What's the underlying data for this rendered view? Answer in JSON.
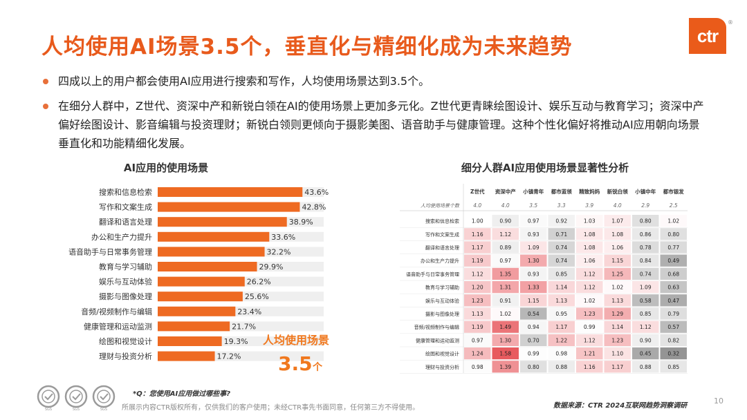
{
  "page": {
    "title": "人均使用AI场景3.5个，垂直化与精细化成为未来趋势",
    "logo_text": "ctr",
    "logo_mark": "®",
    "bullets": [
      "四成以上的用户都会使用AI应用进行搜索和写作，人均使用场景达到3.5个。",
      "在细分人群中，Z世代、资深中产和新锐白领在AI的使用场景上更加多元化。Z世代更青睐绘图设计、娱乐互动与教育学习；资深中产偏好绘图设计、影音编辑与投资理财；新锐白领则更倾向于摄影美图、语音助手与健康管理。这种个性化偏好将推动AI应用朝向场景垂直化和功能精细化发展。"
    ],
    "note": "*Q：您使用AI应用做过哪些事?",
    "copyright": "所展示内容CTR版权所有，仅供我们的客户使用；未经CTR事先书面同意，任何第三方不得使用。",
    "source": "数据来源：CTR 2024互联网趋势洞察调研",
    "page_number": "10",
    "seal_label": "SGS",
    "colors": {
      "accent": "#e85a1c",
      "bar": "#ee6a22",
      "bar_track": "#efefef",
      "callout": "#f0781e"
    }
  },
  "chart_data": [
    {
      "type": "bar",
      "orientation": "horizontal",
      "title": "AI应用的使用场景",
      "categories": [
        "搜索和信息检索",
        "写作和文案生成",
        "翻译和语言处理",
        "办公和生产力提升",
        "语音助手与日常事务管理",
        "教育与学习辅助",
        "娱乐与互动体验",
        "摄影与图像处理",
        "音频/视频制作与编辑",
        "健康管理和运动监测",
        "绘图和视觉设计",
        "理财与投资分析"
      ],
      "values": [
        43.6,
        42.8,
        38.9,
        33.6,
        32.2,
        29.9,
        26.2,
        25.6,
        23.4,
        21.7,
        19.3,
        17.2
      ],
      "value_labels": [
        "43.6%",
        "42.8%",
        "38.9%",
        "33.6%",
        "32.2%",
        "29.9%",
        "26.2%",
        "25.6%",
        "23.4%",
        "21.7%",
        "19.3%",
        "17.2%"
      ],
      "xlim": [
        0,
        50
      ],
      "annotation": {
        "text": "人均使用场景",
        "value": "3.5",
        "unit": "个"
      }
    },
    {
      "type": "heatmap",
      "title": "细分人群AI应用使用场景显著性分析",
      "columns": [
        "Z世代",
        "资深中产",
        "小镇青年",
        "都市蓝领",
        "精致妈妈",
        "新锐白领",
        "小镇中年",
        "都市银发"
      ],
      "summary_row": {
        "label": "人均使用场景个数",
        "values": [
          "4.0",
          "4.0",
          "3.5",
          "3.3",
          "3.9",
          "4.0",
          "2.9",
          "2.5"
        ]
      },
      "rows": [
        "搜索和信息检索",
        "写作和文案生成",
        "翻译和语言处理",
        "办公和生产力提升",
        "语音助手与日常事务管理",
        "教育与学习辅助",
        "娱乐与互动体验",
        "摄影与图像处理",
        "音频/视频制作与编辑",
        "健康管理和运动监测",
        "绘图和视觉设计",
        "理财与投资分析"
      ],
      "values": [
        [
          1.0,
          0.9,
          0.97,
          0.92,
          1.03,
          1.07,
          0.8,
          1.02
        ],
        [
          1.16,
          1.12,
          0.93,
          0.71,
          1.08,
          1.08,
          0.86,
          0.8
        ],
        [
          1.17,
          0.89,
          1.09,
          0.74,
          1.08,
          1.06,
          0.78,
          0.77
        ],
        [
          1.19,
          0.97,
          1.3,
          0.74,
          1.06,
          1.15,
          0.84,
          0.49
        ],
        [
          1.12,
          1.35,
          0.93,
          0.85,
          1.12,
          1.25,
          0.74,
          0.68
        ],
        [
          1.2,
          1.31,
          1.33,
          1.14,
          1.12,
          1.02,
          1.09,
          0.63
        ],
        [
          1.23,
          0.91,
          1.15,
          1.13,
          1.02,
          1.13,
          0.58,
          0.47
        ],
        [
          1.13,
          1.02,
          0.54,
          0.95,
          1.23,
          1.29,
          0.85,
          0.79
        ],
        [
          1.19,
          1.49,
          0.94,
          1.17,
          0.99,
          1.14,
          1.12,
          0.57
        ],
        [
          0.97,
          1.3,
          0.7,
          1.22,
          1.12,
          1.23,
          0.9,
          0.82
        ],
        [
          1.24,
          1.58,
          0.99,
          0.98,
          1.21,
          1.1,
          0.45,
          0.32
        ],
        [
          0.98,
          1.39,
          0.8,
          0.88,
          1.16,
          1.17,
          0.88,
          0.85
        ]
      ]
    }
  ]
}
